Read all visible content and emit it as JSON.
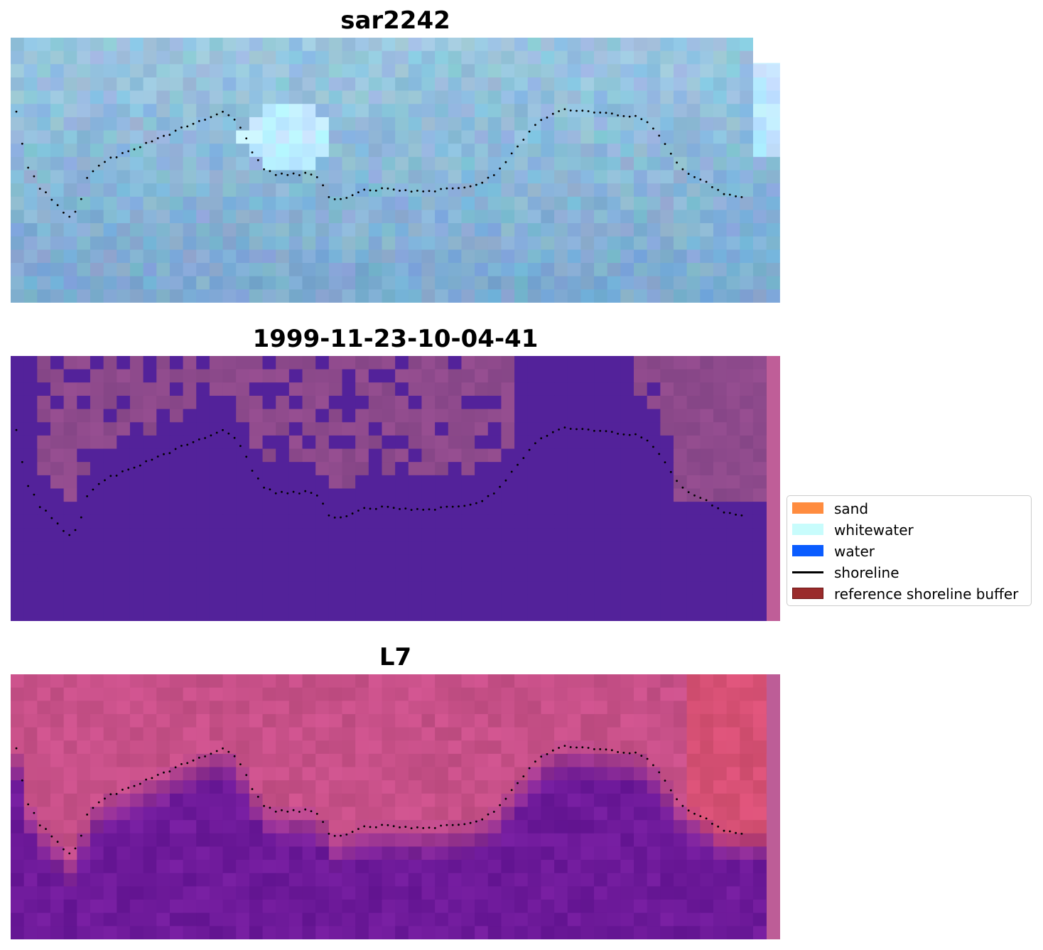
{
  "panels": [
    {
      "title": "sar2242"
    },
    {
      "title": "1999-11-23-10-04-41"
    },
    {
      "title": "L7"
    }
  ],
  "legend": {
    "items": [
      {
        "label": "sand",
        "color": "#ff8c3f"
      },
      {
        "label": "whitewater",
        "color": "#c8fcfc"
      },
      {
        "label": "water",
        "color": "#0a5cff"
      },
      {
        "label": "shoreline",
        "color": "#000000"
      },
      {
        "label": "reference shoreline buffer",
        "color": "#9a2c2c"
      }
    ]
  },
  "colors": {
    "sar_base": "#7b9ed0",
    "classification_water": "#53229a",
    "classification_land": "#8e4a8c",
    "classification_edge": "#bf5e98",
    "l7_land": "#c75088",
    "l7_water": "#6e1a9a",
    "l7_edge": "#bd5d97"
  }
}
